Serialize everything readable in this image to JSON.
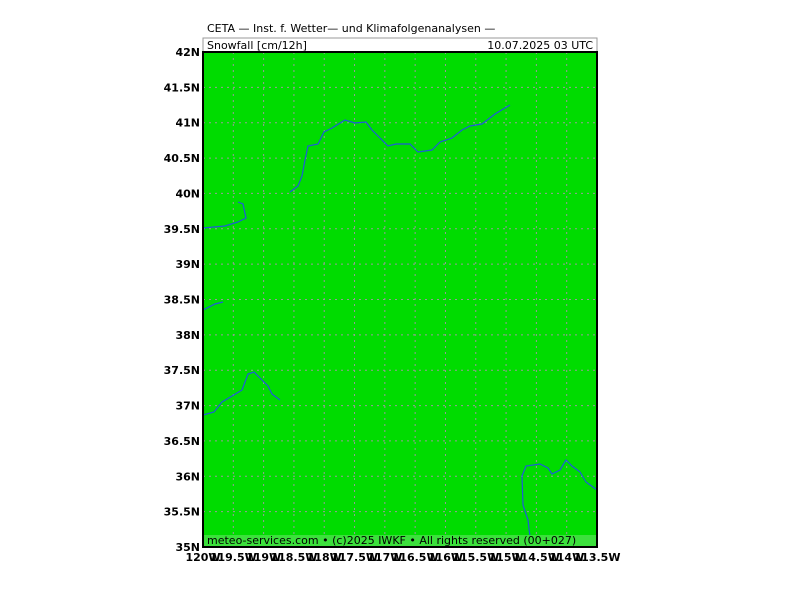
{
  "header": {
    "title": "CETA — Inst. f. Wetter— und Klimafolgenanalysen —",
    "variable": "Snowfall [cm/12h]",
    "valid_time": "10.07.2025 03 UTC"
  },
  "footer": "meteo-services.com • (c)2025 IWKF • All rights reserved (00+027)",
  "axes": {
    "lat_labels": [
      "42N",
      "41.5N",
      "41N",
      "40.5N",
      "40N",
      "39.5N",
      "39N",
      "38.5N",
      "38N",
      "37.5N",
      "37N",
      "36.5N",
      "36N",
      "35.5N",
      "35N"
    ],
    "lon_labels": [
      "120W",
      "119.5W",
      "119W",
      "118.5W",
      "118W",
      "117.5W",
      "117W",
      "116.5W",
      "116W",
      "115.5W",
      "115W",
      "114.5W",
      "114W",
      "113.5W"
    ]
  }
}
